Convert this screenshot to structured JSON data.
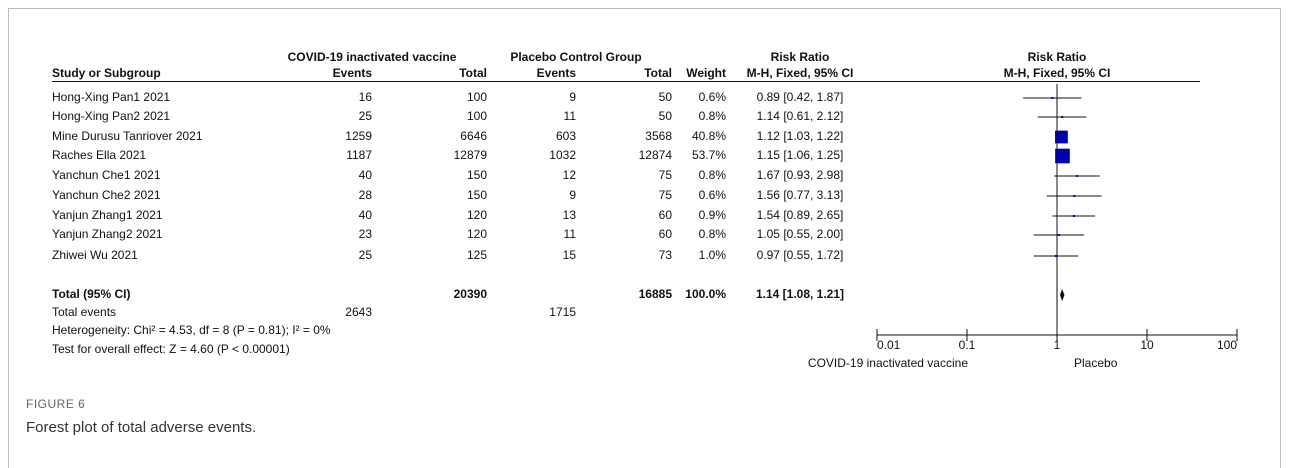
{
  "headers": {
    "group1": "COVID-19 inactivated vaccine",
    "group2": "Placebo Control Group",
    "rr_table": "Risk Ratio",
    "rr_plot": "Risk Ratio",
    "columns": [
      "Study or Subgroup",
      "Events",
      "Total",
      "Events",
      "Total",
      "Weight",
      "M-H, Fixed, 95% CI",
      "M-H, Fixed, 95% CI"
    ]
  },
  "rows": [
    {
      "study": "Hong-Xing Pan1 2021",
      "events1": 16,
      "total1": 100,
      "events2": 9,
      "total2": 50,
      "weight": 0.6,
      "weight_label": "0.6%",
      "rr": 0.89,
      "ci": [
        0.42,
        1.87
      ],
      "rr_label": "0.89 [0.42, 1.87]"
    },
    {
      "study": "Hong-Xing Pan2 2021",
      "events1": 25,
      "total1": 100,
      "events2": 11,
      "total2": 50,
      "weight": 0.8,
      "weight_label": "0.8%",
      "rr": 1.14,
      "ci": [
        0.61,
        2.12
      ],
      "rr_label": "1.14 [0.61, 2.12]"
    },
    {
      "study": "Mine Durusu Tanriover 2021",
      "events1": 1259,
      "total1": 6646,
      "events2": 603,
      "total2": 3568,
      "weight": 40.8,
      "weight_label": "40.8%",
      "rr": 1.12,
      "ci": [
        1.03,
        1.22
      ],
      "rr_label": "1.12 [1.03, 1.22]"
    },
    {
      "study": "Raches Ella 2021",
      "events1": 1187,
      "total1": 12879,
      "events2": 1032,
      "total2": 12874,
      "weight": 53.7,
      "weight_label": "53.7%",
      "rr": 1.15,
      "ci": [
        1.06,
        1.25
      ],
      "rr_label": "1.15 [1.06, 1.25]"
    },
    {
      "study": "Yanchun Che1 2021",
      "events1": 40,
      "total1": 150,
      "events2": 12,
      "total2": 75,
      "weight": 0.8,
      "weight_label": "0.8%",
      "rr": 1.67,
      "ci": [
        0.93,
        2.98
      ],
      "rr_label": "1.67 [0.93, 2.98]"
    },
    {
      "study": "Yanchun Che2 2021",
      "events1": 28,
      "total1": 150,
      "events2": 9,
      "total2": 75,
      "weight": 0.6,
      "weight_label": "0.6%",
      "rr": 1.56,
      "ci": [
        0.77,
        3.13
      ],
      "rr_label": "1.56 [0.77, 3.13]"
    },
    {
      "study": "Yanjun Zhang1 2021",
      "events1": 40,
      "total1": 120,
      "events2": 13,
      "total2": 60,
      "weight": 0.9,
      "weight_label": "0.9%",
      "rr": 1.54,
      "ci": [
        0.89,
        2.65
      ],
      "rr_label": "1.54 [0.89, 2.65]"
    },
    {
      "study": "Yanjun Zhang2 2021",
      "events1": 23,
      "total1": 120,
      "events2": 11,
      "total2": 60,
      "weight": 0.8,
      "weight_label": "0.8%",
      "rr": 1.05,
      "ci": [
        0.55,
        2.0
      ],
      "rr_label": "1.05 [0.55, 2.00]"
    },
    {
      "study": "Zhiwei Wu 2021",
      "events1": 25,
      "total1": 125,
      "events2": 15,
      "total2": 73,
      "weight": 1.0,
      "weight_label": "1.0%",
      "rr": 0.97,
      "ci": [
        0.55,
        1.72
      ],
      "rr_label": "0.97 [0.55, 1.72]"
    }
  ],
  "total": {
    "label": "Total (95% CI)",
    "total1": 20390,
    "total2": 16885,
    "weight": 100.0,
    "weight_label": "100.0%",
    "rr": 1.14,
    "ci": [
      1.08,
      1.21
    ],
    "rr_label": "1.14 [1.08, 1.21]"
  },
  "total_events": {
    "label": "Total events",
    "events1": 2643,
    "events2": 1715
  },
  "heterogeneity": "Heterogeneity: Chi² = 4.53, df = 8 (P = 0.81); I² = 0%",
  "overall_effect": "Test for overall effect: Z = 4.60 (P < 0.00001)",
  "axis": {
    "log": true,
    "xlim": [
      0.01,
      100
    ],
    "xticks": [
      0.01,
      0.1,
      1,
      10,
      100
    ],
    "left_label": "COVID-19 inactivated vaccine",
    "right_label": "Placebo",
    "color": "#0000a8"
  },
  "caption": {
    "label": "FIGURE 6",
    "text": "Forest plot of total adverse events."
  }
}
